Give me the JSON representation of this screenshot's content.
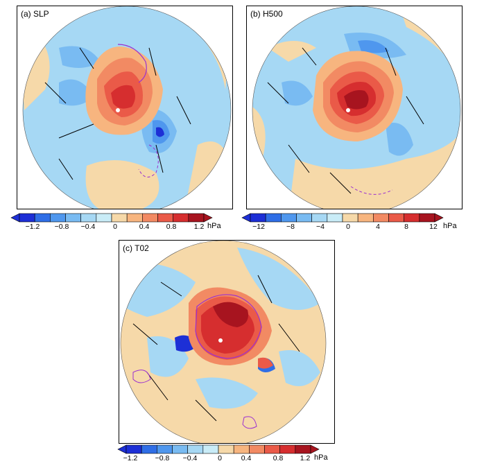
{
  "panels": [
    {
      "label": "(a)  SLP"
    },
    {
      "label": "(b)  H500"
    },
    {
      "label": "(c)  T02"
    }
  ],
  "colorbars": [
    {
      "ticks": [
        "−1.2",
        "−0.8",
        "−0.4",
        "0",
        "0.4",
        "0.8",
        "1.2"
      ],
      "unit": "hPa"
    },
    {
      "ticks": [
        "−12",
        "−8",
        "−4",
        "0",
        "4",
        "8",
        "12"
      ],
      "unit": "hPa"
    },
    {
      "ticks": [
        "−1.2",
        "−0.8",
        "−0.4",
        "0",
        "0.4",
        "0.8",
        "1.2"
      ],
      "unit": "hPa"
    }
  ],
  "palette": [
    "#1d2fd6",
    "#2f6ee6",
    "#4f97ee",
    "#79bbf2",
    "#a6d8f4",
    "#c9ecf7",
    "#f6d9a9",
    "#f7b57f",
    "#f28a63",
    "#ea5a48",
    "#d62e2f",
    "#a7141f"
  ],
  "colors": {
    "zero_fill": "#f6d9a9",
    "light_blue": "#a6d8f4",
    "contour": "#9b30d0",
    "pole_marker": "#ffffff"
  }
}
